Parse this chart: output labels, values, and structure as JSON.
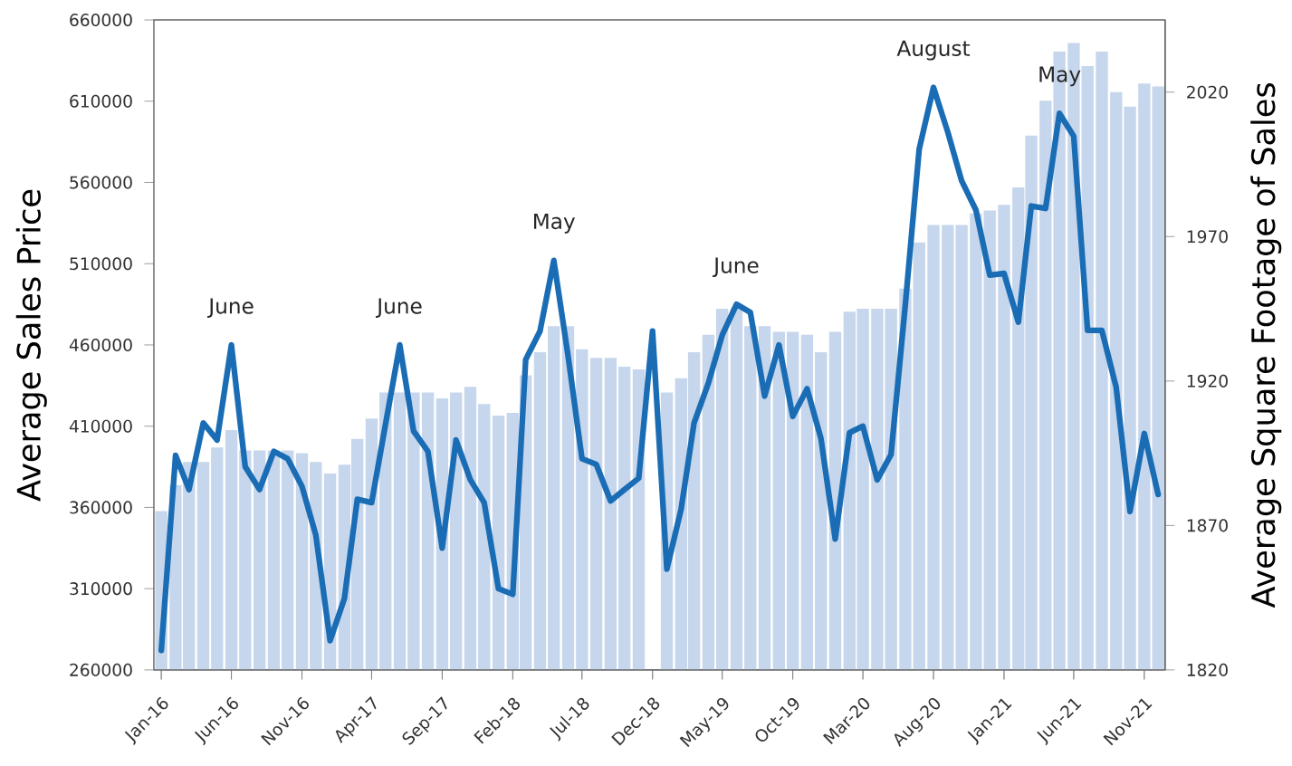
{
  "chart_data": {
    "type": "line",
    "ylabel": "Average Sales Price",
    "y2label": "Average Square  Footage of Sales",
    "x": [
      "2016-01",
      "2016-02",
      "2016-03",
      "2016-04",
      "2016-05",
      "2016-06",
      "2016-07",
      "2016-08",
      "2016-09",
      "2016-10",
      "2016-11",
      "2016-12",
      "2017-01",
      "2017-02",
      "2017-03",
      "2017-04",
      "2017-05",
      "2017-06",
      "2017-07",
      "2017-08",
      "2017-09",
      "2017-10",
      "2017-11",
      "2017-12",
      "2018-01",
      "2018-02",
      "2018-03",
      "2018-04",
      "2018-05",
      "2018-06",
      "2018-07",
      "2018-08",
      "2018-09",
      "2018-10",
      "2018-11",
      "2018-12",
      "2019-01",
      "2019-02",
      "2019-03",
      "2019-04",
      "2019-05",
      "2019-06",
      "2019-07",
      "2019-08",
      "2019-09",
      "2019-10",
      "2019-11",
      "2019-12",
      "2020-01",
      "2020-02",
      "2020-03",
      "2020-04",
      "2020-05",
      "2020-06",
      "2020-07",
      "2020-08",
      "2020-09",
      "2020-10",
      "2020-11",
      "2020-12",
      "2021-01",
      "2021-02",
      "2021-03",
      "2021-04",
      "2021-05",
      "2021-06",
      "2021-07",
      "2021-08",
      "2021-09",
      "2021-10",
      "2021-11",
      "2021-12"
    ],
    "series": [
      {
        "type": "bar",
        "axis": "y2",
        "color": "#c6d6ec",
        "values": [
          1875,
          1884,
          1892,
          1892,
          1897,
          1903,
          1896,
          1896,
          1896,
          1896,
          1895,
          1892,
          1888,
          1891,
          1900,
          1907,
          1916,
          1916,
          1916,
          1916,
          1914,
          1916,
          1918,
          1912,
          1908,
          1909,
          1922,
          1930,
          1939,
          1939,
          1931,
          1928,
          1928,
          1925,
          1924,
          null,
          1916,
          1921,
          1930,
          1936,
          1945,
          1945,
          1939,
          1939,
          1937,
          1937,
          1936,
          1930,
          1937,
          1944,
          1945,
          1945,
          1945,
          1952,
          1968,
          1974,
          1974,
          1974,
          1978,
          1979,
          1981,
          1987,
          2005,
          2017,
          2034,
          2037,
          2029,
          2034,
          2020,
          2015,
          2023,
          2022
        ]
      },
      {
        "color": "#1a6db5",
        "values": [
          272000,
          392000,
          371000,
          412000,
          401500,
          460000,
          385000,
          371000,
          394500,
          390000,
          373000,
          343000,
          278000,
          304000,
          365000,
          363000,
          411000,
          460000,
          407000,
          394500,
          335000,
          401500,
          377000,
          363000,
          310000,
          306500,
          451000,
          468500,
          512000,
          453000,
          390000,
          386500,
          364000,
          371000,
          378000,
          468500,
          322000,
          359000,
          412000,
          436500,
          466000,
          485000,
          480000,
          428500,
          460000,
          416000,
          433000,
          402500,
          340500,
          406000,
          410000,
          377000,
          392500,
          485000,
          580500,
          618500,
          591000,
          561000,
          543000,
          503000,
          504000,
          474000,
          545500,
          544000,
          602500,
          588500,
          469000,
          469000,
          434000,
          357500,
          405500,
          368000
        ]
      }
    ],
    "xlim": [
      "2015-12-16",
      "2021-12-16"
    ],
    "xticks": [
      {
        "value": "2016-01",
        "label": "Jan-16"
      },
      {
        "value": "2016-06",
        "label": "Jun-16"
      },
      {
        "value": "2016-11",
        "label": "Nov-16"
      },
      {
        "value": "2017-04",
        "label": "Apr-17"
      },
      {
        "value": "2017-09",
        "label": "Sep-17"
      },
      {
        "value": "2018-02",
        "label": "Feb-18"
      },
      {
        "value": "2018-07",
        "label": "Jul-18"
      },
      {
        "value": "2018-12",
        "label": "Dec-18"
      },
      {
        "value": "2019-05",
        "label": "May-19"
      },
      {
        "value": "2019-10",
        "label": "Oct-19"
      },
      {
        "value": "2020-03",
        "label": "Mar-20"
      },
      {
        "value": "2020-08",
        "label": "Aug-20"
      },
      {
        "value": "2021-01",
        "label": "Jan-21"
      },
      {
        "value": "2021-06",
        "label": "Jun-21"
      },
      {
        "value": "2021-11",
        "label": "Nov-21"
      }
    ],
    "ylim": [
      260000,
      660000
    ],
    "yticks": [
      260000,
      310000,
      360000,
      410000,
      460000,
      510000,
      560000,
      610000,
      660000
    ],
    "y2lim": [
      1820,
      2045
    ],
    "y2ticks": [
      1820,
      1870,
      1920,
      1970,
      2020
    ],
    "annotations": [
      {
        "text": "June",
        "x": "2016-06",
        "y": 460000
      },
      {
        "text": "June",
        "x": "2017-06",
        "y": 460000
      },
      {
        "text": "May",
        "x": "2018-05",
        "y": 512000
      },
      {
        "text": "June",
        "x": "2019-06",
        "y": 485000
      },
      {
        "text": "August",
        "x": "2020-08",
        "y": 618500
      },
      {
        "text": "May",
        "x": "2021-05",
        "y": 602500
      }
    ]
  }
}
